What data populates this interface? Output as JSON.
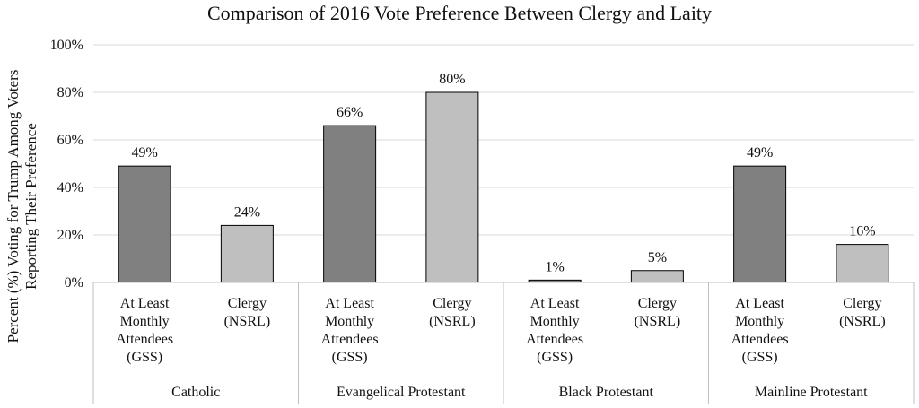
{
  "chart_data": {
    "type": "bar",
    "title": "Comparison of 2016 Vote Preference Between Clergy and Laity",
    "ylabel": "Percent (%) Voting for Trump Among Voters Reporting Their Preference",
    "ylabel_lines": [
      "Percent (%) Voting for Trump Among Voters",
      "Reporting Their Preference"
    ],
    "xlabel": "",
    "ylim": [
      0,
      100
    ],
    "yticks": [
      0,
      20,
      40,
      60,
      80,
      100
    ],
    "ytick_labels": [
      "0%",
      "20%",
      "40%",
      "60%",
      "80%",
      "100%"
    ],
    "grid": true,
    "legend": "none",
    "colors": {
      "laity": "#808080",
      "clergy": "#bfbfbf"
    },
    "groups": [
      {
        "name": "Catholic",
        "bars": [
          {
            "label_lines": [
              "At Least",
              "Monthly",
              "Attendees",
              "(GSS)"
            ],
            "value": 49,
            "display": "49%",
            "kind": "laity"
          },
          {
            "label_lines": [
              "Clergy",
              "(NSRL)"
            ],
            "value": 24,
            "display": "24%",
            "kind": "clergy"
          }
        ]
      },
      {
        "name": "Evangelical Protestant",
        "bars": [
          {
            "label_lines": [
              "At Least",
              "Monthly",
              "Attendees",
              "(GSS)"
            ],
            "value": 66,
            "display": "66%",
            "kind": "laity"
          },
          {
            "label_lines": [
              "Clergy",
              "(NSRL)"
            ],
            "value": 80,
            "display": "80%",
            "kind": "clergy"
          }
        ]
      },
      {
        "name": "Black Protestant",
        "bars": [
          {
            "label_lines": [
              "At Least",
              "Monthly",
              "Attendees",
              "(GSS)"
            ],
            "value": 1,
            "display": "1%",
            "kind": "laity"
          },
          {
            "label_lines": [
              "Clergy",
              "(NSRL)"
            ],
            "value": 5,
            "display": "5%",
            "kind": "clergy"
          }
        ]
      },
      {
        "name": "Mainline Protestant",
        "bars": [
          {
            "label_lines": [
              "At Least",
              "Monthly",
              "Attendees",
              "(GSS)"
            ],
            "value": 49,
            "display": "49%",
            "kind": "laity"
          },
          {
            "label_lines": [
              "Clergy",
              "(NSRL)"
            ],
            "value": 16,
            "display": "16%",
            "kind": "clergy"
          }
        ]
      }
    ]
  }
}
